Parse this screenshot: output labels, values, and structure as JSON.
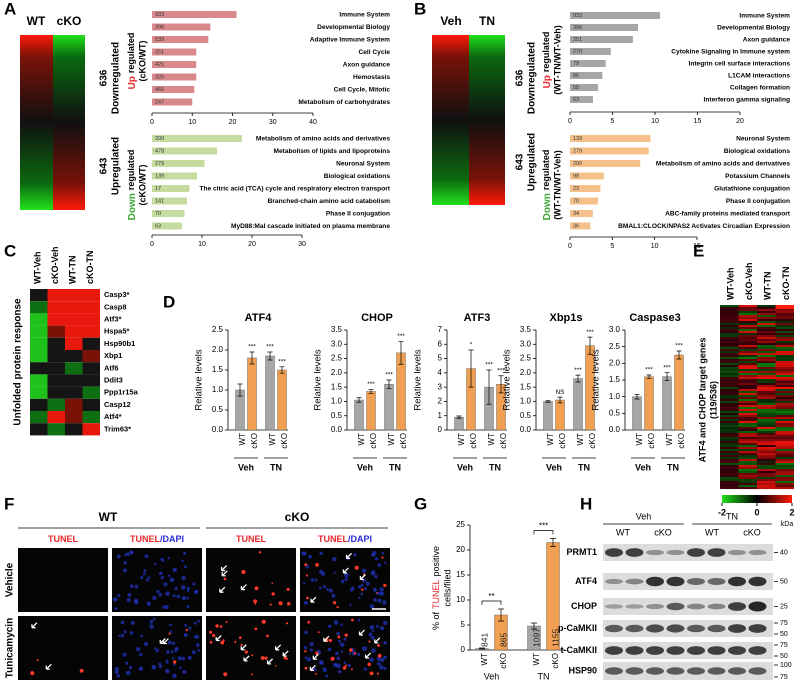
{
  "panel_a": {
    "label": "A",
    "heatmap_columns": [
      "WT",
      "cKO"
    ],
    "groups": [
      {
        "count": 636,
        "name": "Downregulated"
      },
      {
        "count": 643,
        "name": "Upregulated"
      }
    ],
    "up": {
      "axis_label": [
        "Up",
        "regulated",
        "(cKO/WT)"
      ],
      "label_color": "#e8262a",
      "color": "#d9898c",
      "xlim": [
        0,
        40
      ],
      "xticks": [
        0,
        10,
        20,
        30,
        40
      ],
      "terms": [
        "Immune System",
        "Developmental Biology",
        "Adaptive Immune System",
        "Cell Cycle",
        "Axon guidance",
        "Hemostasis",
        "Cell Cycle, Mitotic",
        "Metabolism of carbohydrates"
      ],
      "term_colors": [
        "#e8262a",
        "#e8262a",
        "#000000",
        "#000000",
        "#e8262a",
        "#000000",
        "#000000",
        "#000000"
      ],
      "counts": [
        933,
        396,
        539,
        251,
        421,
        325,
        466,
        247
      ],
      "values": [
        21,
        14.5,
        14,
        11,
        11,
        11,
        10.5,
        10
      ]
    },
    "down": {
      "axis_label": [
        "Down",
        "regulated",
        "(cKO/WT)"
      ],
      "label_color": "#3aa935",
      "color": "#c5dba0",
      "xlim": [
        0,
        30
      ],
      "xticks": [
        0,
        10,
        20,
        30
      ],
      "terms": [
        "Metabolism of amino acids and derivatives",
        "Metabolism of lipids and lipoproteins",
        "Neuronal System",
        "Biological oxidations",
        "The citric acid (TCA) cycle and respiratory electron transport",
        "Branched-chain amino acid catabolism",
        "Phase II conjugation",
        "MyD88:Mal cascade initiated on plasma membrane"
      ],
      "term_colors": [
        "#3aa935",
        "#000000",
        "#3aa935",
        "#3aa935",
        "#000000",
        "#000000",
        "#3aa935",
        "#000000"
      ],
      "counts": [
        200,
        478,
        279,
        139,
        17,
        141,
        70,
        63
      ],
      "values": [
        18,
        13,
        10.5,
        9,
        7.5,
        7,
        6.5,
        6
      ]
    }
  },
  "panel_b": {
    "label": "B",
    "heatmap_columns": [
      "Veh",
      "TN"
    ],
    "groups": [
      {
        "count": 636,
        "name": "Downregulated"
      },
      {
        "count": 643,
        "name": "Upregulated"
      }
    ],
    "up": {
      "axis_label": [
        "Up",
        "regulated",
        "(WT-TN/WT-Veh)"
      ],
      "label_color": "#e8262a",
      "color": "#a6a6a6",
      "xlim": [
        0,
        20
      ],
      "xticks": [
        0,
        5,
        10,
        15,
        20
      ],
      "terms": [
        "Immune System",
        "Developmental Biology",
        "Axon guidance",
        "Cytokine Signaling in Immune system",
        "Integrin cell surface interactions",
        "L1CAM interactions",
        "Collagen formation",
        "Interferon gamma signaling"
      ],
      "term_colors": [
        "#e8262a",
        "#e8262a",
        "#e8262a",
        "#000000",
        "#000000",
        "#000000",
        "#000000",
        "#000000"
      ],
      "counts": [
        933,
        396,
        251,
        270,
        79,
        86,
        58,
        63
      ],
      "values": [
        10.6,
        8,
        7.4,
        4.8,
        4.2,
        3.8,
        3.3,
        2.7
      ]
    },
    "down": {
      "axis_label": [
        "Down",
        "regulated",
        "(WT-TN/WT-Veh)"
      ],
      "label_color": "#3aa935",
      "color": "#f5c08a",
      "xlim": [
        0,
        15
      ],
      "xticks": [
        0,
        5,
        10,
        15
      ],
      "terms": [
        "Neuronal System",
        "Biological oxidations",
        "Metabolism of amino acids and derivatives",
        "Potassium Channels",
        "Glutathione conjugation",
        "Phase II conjugation",
        "ABC-family proteins mediated transport",
        "BMAL1:CLOCK/NPAS2 Activates Circadian Expression"
      ],
      "term_colors": [
        "#3aa935",
        "#3aa935",
        "#3aa935",
        "#000000",
        "#000000",
        "#3aa935",
        "#000000",
        "#000000"
      ],
      "counts": [
        139,
        279,
        200,
        98,
        23,
        70,
        34,
        36
      ],
      "values": [
        9.5,
        9.3,
        8.3,
        4,
        3.6,
        3.3,
        2.7,
        2.4
      ]
    }
  },
  "panel_c": {
    "label": "C",
    "columns": [
      "WT-Veh",
      "cKO-Veh",
      "WT-TN",
      "cKO-TN"
    ],
    "y_label": "Unfolded protein response",
    "genes": [
      "Casp3*",
      "Casp8",
      "Atf3*",
      "Hspa5*",
      "Hsp90b1",
      "Xbp1",
      "Atf6",
      "Ddit3",
      "Ppp1r15a",
      "Casp12",
      "Atf4*",
      "Trim63*"
    ],
    "gene_colors": [
      "#e8262a",
      "#000000",
      "#e8262a",
      "#e8262a",
      "#000000",
      "#000000",
      "#000000",
      "#000000",
      "#000000",
      "#000000",
      "#e8262a",
      "#e8262a"
    ],
    "cell_colors": [
      [
        "#151515",
        "#e8180c",
        "#e8180c",
        "#e8180c"
      ],
      [
        "#0d6e12",
        "#e8180c",
        "#e8180c",
        "#e8180c"
      ],
      [
        "#1fc21a",
        "#e8180c",
        "#e8180c",
        "#e8180c"
      ],
      [
        "#1fc21a",
        "#7a1208",
        "#e8180c",
        "#e8180c"
      ],
      [
        "#1fc21a",
        "#151515",
        "#e8180c",
        "#151515"
      ],
      [
        "#1fc21a",
        "#151515",
        "#151515",
        "#7a1208"
      ],
      [
        "#151515",
        "#151515",
        "#0d6e12",
        "#151515"
      ],
      [
        "#1fc21a",
        "#151515",
        "#151515",
        "#151515"
      ],
      [
        "#1fc21a",
        "#151515",
        "#151515",
        "#0d6e12"
      ],
      [
        "#151515",
        "#0d6e12",
        "#7a1208",
        "#151515"
      ],
      [
        "#0d6e12",
        "#e8180c",
        "#7a1208",
        "#0d6e12"
      ],
      [
        "#151515",
        "#0d6e12",
        "#151515",
        "#e8180c"
      ]
    ]
  },
  "panel_d": {
    "label": "D",
    "y_label": "Relative levels",
    "categories": [
      "WT",
      "cKO",
      "WT",
      "cKO"
    ],
    "groups": [
      "Veh",
      "TN"
    ],
    "colors": [
      "#a6a6a6",
      "#f0a050"
    ],
    "charts": [
      {
        "title": "ATF4",
        "ylim": [
          0,
          2.5
        ],
        "yticks": [
          {
            "value": 0,
            "label": "0.0"
          },
          0.5,
          {
            "value": 1,
            "label": "1.0"
          },
          1.5,
          {
            "value": 2,
            "label": "2.0"
          },
          2.5
        ],
        "values": [
          1.0,
          1.8,
          1.85,
          1.5
        ],
        "errors": [
          0.15,
          0.15,
          0.1,
          0.08
        ],
        "significance": [
          null,
          "***",
          "***",
          "***"
        ]
      },
      {
        "title": "CHOP",
        "ylim": [
          0,
          3.5
        ],
        "yticks": [
          {
            "value": 0,
            "label": "0.0"
          },
          0.5,
          {
            "value": 1,
            "label": "1.0"
          },
          1.5,
          {
            "value": 2,
            "label": "2.0"
          },
          2.5,
          {
            "value": 3,
            "label": "3.0"
          },
          3.5
        ],
        "values": [
          1.05,
          1.35,
          1.6,
          2.7
        ],
        "errors": [
          0.08,
          0.07,
          0.15,
          0.4
        ],
        "significance": [
          null,
          "***",
          "***",
          "***"
        ]
      },
      {
        "title": "ATF3",
        "ylim": [
          0,
          7
        ],
        "yticks": [
          0,
          1,
          2,
          3,
          4,
          5,
          6,
          7
        ],
        "values": [
          0.9,
          4.3,
          3.0,
          3.2
        ],
        "errors": [
          0.08,
          1.3,
          1.2,
          0.6
        ],
        "significance": [
          null,
          "*",
          "***",
          "***"
        ]
      },
      {
        "title": "Xbp1s",
        "ylim": [
          0,
          3.5
        ],
        "yticks": [
          {
            "value": 0,
            "label": "0.0"
          },
          0.5,
          {
            "value": 1,
            "label": "1.0"
          },
          1.5,
          {
            "value": 2,
            "label": "2.0"
          },
          2.5,
          {
            "value": 3,
            "label": "3.0"
          },
          3.5
        ],
        "values": [
          1.0,
          1.05,
          1.8,
          2.95
        ],
        "errors": [
          0.03,
          0.1,
          0.12,
          0.3
        ],
        "significance": [
          null,
          "NS",
          "***",
          "***"
        ]
      },
      {
        "title": "Caspase3",
        "ylim": [
          0,
          3
        ],
        "yticks": [
          {
            "value": 0,
            "label": "0.0"
          },
          0.5,
          {
            "value": 1,
            "label": "1.0"
          },
          1.5,
          {
            "value": 2,
            "label": "2.0"
          },
          2.5,
          {
            "value": 3,
            "label": "3.0"
          }
        ],
        "values": [
          1.0,
          1.6,
          1.6,
          2.25
        ],
        "errors": [
          0.07,
          0.05,
          0.12,
          0.12
        ],
        "significance": [
          null,
          "***",
          "***",
          "***"
        ]
      }
    ]
  },
  "panel_e": {
    "label": "E",
    "columns": [
      "WT-Veh",
      "cKO-Veh",
      "WT-TN",
      "cKO-TN"
    ],
    "y_label": [
      "ATF4 and CHOP target genes",
      "(119/536)"
    ],
    "colorbar": {
      "lim": [
        -2,
        2
      ],
      "ticks": [
        -2,
        0,
        2
      ]
    }
  },
  "panel_f": {
    "label": "F",
    "genotypes": [
      "WT",
      "cKO"
    ],
    "column_labels": [
      "TUNEL",
      "/DAPI"
    ],
    "row_labels": [
      "Vehicle",
      "Tunicamycin"
    ]
  },
  "panel_g": {
    "label": "G",
    "y_label": [
      "% of",
      "TUNEL",
      "positive",
      "cells/filed"
    ],
    "categories": [
      "WT",
      "cKO",
      "WT",
      "cKO"
    ],
    "groups": [
      "Veh",
      "TN"
    ],
    "colors": [
      "#a6a6a6",
      "#f0a050"
    ],
    "ylim": [
      0,
      25
    ],
    "yticks": [
      0,
      5,
      10,
      15,
      20,
      25
    ],
    "values": [
      0.3,
      7.0,
      4.8,
      21.5
    ],
    "errors": [
      0.1,
      1.2,
      0.6,
      0.8
    ],
    "n": [
      841,
      865,
      1097,
      1155
    ],
    "significance": [
      "**",
      "***"
    ]
  },
  "panel_h": {
    "label": "H",
    "groups": [
      "Veh",
      "TN"
    ],
    "lanes": [
      "WT",
      "cKO",
      "WT",
      "cKO"
    ],
    "unit": "kDa",
    "rows": [
      {
        "name": "PRMT1",
        "markers": [
          40
        ]
      },
      {
        "name": "ATF4",
        "markers": [
          50
        ]
      },
      {
        "name": "CHOP",
        "markers": [
          25
        ]
      },
      {
        "name": "p-CaMKII",
        "markers": [
          75,
          50
        ]
      },
      {
        "name": "t-CaMKII",
        "markers": [
          75,
          50
        ]
      },
      {
        "name": "HSP90",
        "markers": [
          100,
          75
        ]
      }
    ]
  }
}
